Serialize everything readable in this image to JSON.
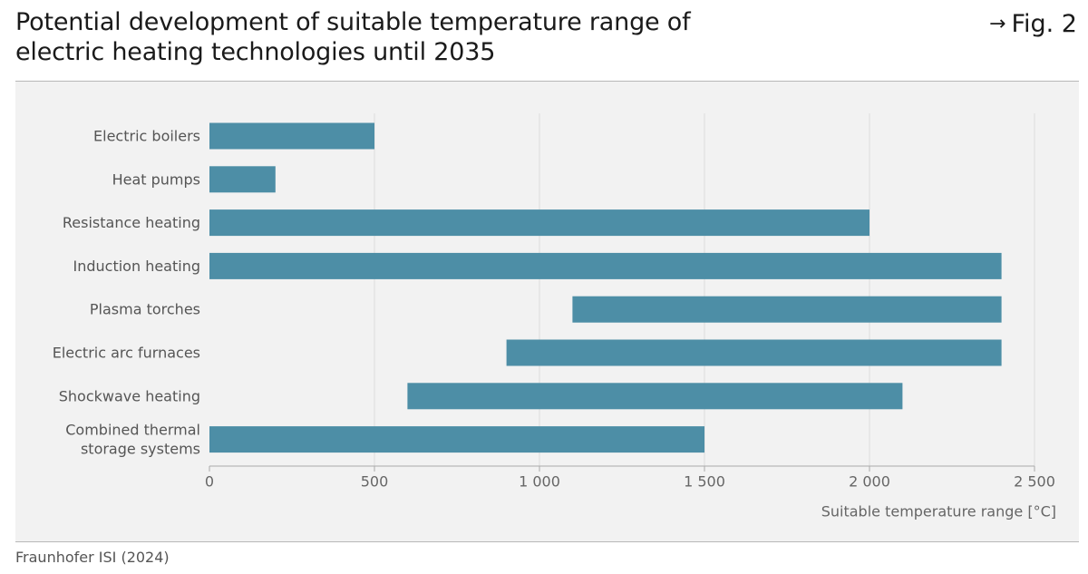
{
  "header": {
    "title_line1": "Potential development of suitable temperature range of",
    "title_line2": "electric heating technologies until 2035",
    "fig_arrow": "→",
    "fig_label": "Fig. 2"
  },
  "footer": {
    "source": "Fraunhofer ISI (2024)"
  },
  "colors": {
    "bar": "#4d8ea6",
    "panel": "#f2f2f2",
    "grid": "#dcdcdc",
    "axis_text": "#666666",
    "label_text": "#555555"
  },
  "chart_data": {
    "type": "bar",
    "orientation": "horizontal",
    "subtype": "floating-range",
    "title": "Potential development of suitable temperature range of electric heating technologies until 2035",
    "xlabel": "Suitable temperature range  [°C]",
    "ylabel": "",
    "xlim": [
      0,
      2500
    ],
    "xticks": [
      0,
      500,
      1000,
      1500,
      2000,
      2500
    ],
    "xtick_labels": [
      "0",
      "500",
      "1 000",
      "1 500",
      "2 000",
      "2 500"
    ],
    "grid": true,
    "categories": [
      [
        "Electric boilers"
      ],
      [
        "Heat pumps"
      ],
      [
        "Resistance heating"
      ],
      [
        "Induction heating"
      ],
      [
        "Plasma torches"
      ],
      [
        "Electric arc furnaces"
      ],
      [
        "Shockwave heating"
      ],
      [
        "Combined thermal",
        "storage systems"
      ]
    ],
    "ranges": [
      [
        0,
        500
      ],
      [
        0,
        200
      ],
      [
        0,
        2000
      ],
      [
        0,
        2400
      ],
      [
        1100,
        2400
      ],
      [
        900,
        2400
      ],
      [
        600,
        2100
      ],
      [
        0,
        1500
      ]
    ]
  }
}
